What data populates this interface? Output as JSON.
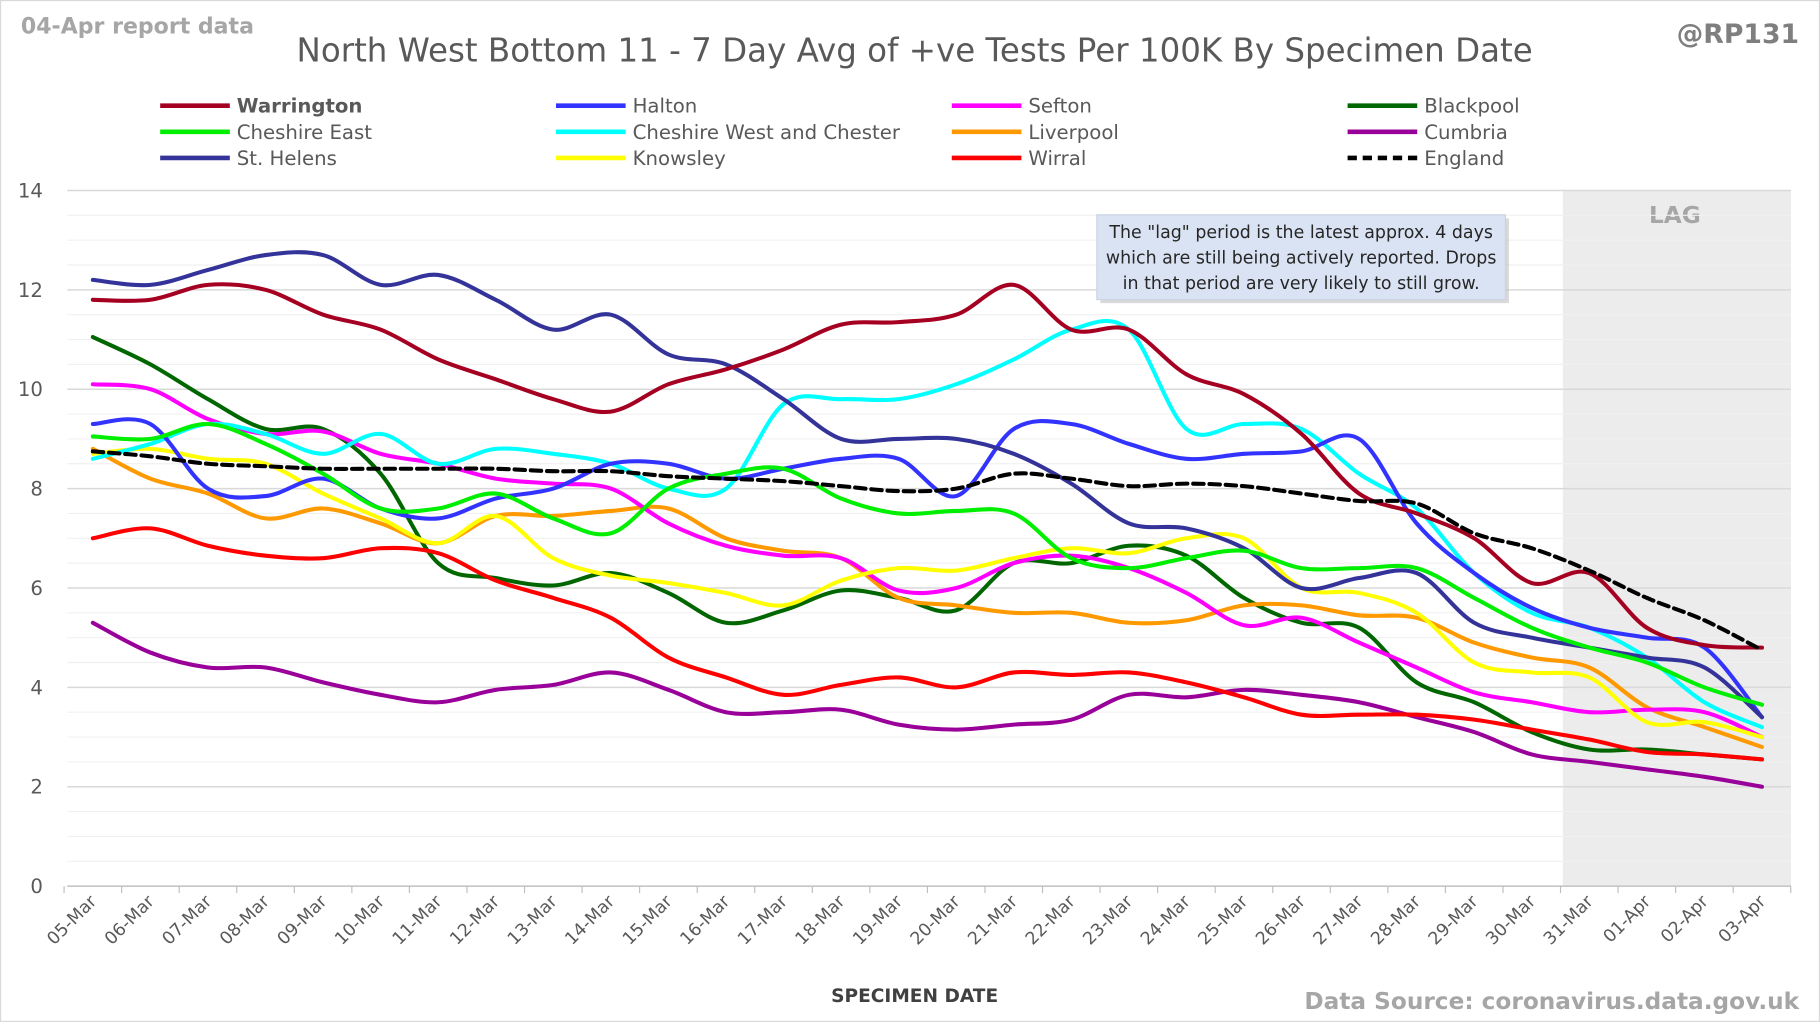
{
  "header": {
    "report_label": "04-Apr report data",
    "handle": "@RP131",
    "source": "Data Source: coronavirus.data.gov.uk"
  },
  "annotation": {
    "lag_label": "LAG",
    "lines": [
      "The \"lag\" period is the latest approx. 4 days",
      "which are still being actively reported.  Drops",
      "in that period are very likely to still grow."
    ]
  },
  "chart_data": {
    "type": "line",
    "title": "North West Bottom 11 - 7 Day Avg of +ve Tests Per 100K By Specimen Date",
    "xlabel": "SPECIMEN DATE",
    "ylabel": "",
    "ylim": [
      0,
      14
    ],
    "yticks": [
      0,
      2,
      4,
      6,
      8,
      10,
      12,
      14
    ],
    "grid": true,
    "legend_position": "top",
    "lag_start": "31-Mar",
    "x": [
      "05-Mar",
      "06-Mar",
      "07-Mar",
      "08-Mar",
      "09-Mar",
      "10-Mar",
      "11-Mar",
      "12-Mar",
      "13-Mar",
      "14-Mar",
      "15-Mar",
      "16-Mar",
      "17-Mar",
      "18-Mar",
      "19-Mar",
      "20-Mar",
      "21-Mar",
      "22-Mar",
      "23-Mar",
      "24-Mar",
      "25-Mar",
      "26-Mar",
      "27-Mar",
      "28-Mar",
      "29-Mar",
      "30-Mar",
      "31-Mar",
      "01-Apr",
      "02-Apr",
      "03-Apr"
    ],
    "series": [
      {
        "name": "Warrington",
        "color": "#a50021",
        "bold": true,
        "values": [
          11.8,
          11.8,
          12.1,
          12.0,
          11.5,
          11.2,
          10.6,
          10.2,
          9.8,
          9.55,
          10.1,
          10.4,
          10.8,
          11.3,
          11.35,
          11.5,
          12.1,
          11.2,
          11.2,
          10.3,
          9.9,
          9.1,
          7.9,
          7.5,
          7.0,
          6.1,
          6.3,
          5.2,
          4.85,
          4.8
        ]
      },
      {
        "name": "Cheshire East",
        "color": "#00ee00",
        "values": [
          9.05,
          9.0,
          9.3,
          8.9,
          8.3,
          7.6,
          7.6,
          7.9,
          7.4,
          7.1,
          8.0,
          8.3,
          8.4,
          7.8,
          7.5,
          7.55,
          7.5,
          6.6,
          6.4,
          6.6,
          6.75,
          6.4,
          6.4,
          6.4,
          5.8,
          5.2,
          4.8,
          4.5,
          4.0,
          3.65
        ]
      },
      {
        "name": "St. Helens",
        "color": "#333399",
        "values": [
          12.2,
          12.1,
          12.4,
          12.7,
          12.7,
          12.1,
          12.3,
          11.8,
          11.2,
          11.5,
          10.7,
          10.5,
          9.8,
          9.0,
          9.0,
          9.0,
          8.7,
          8.1,
          7.3,
          7.2,
          6.8,
          6.0,
          6.2,
          6.3,
          5.3,
          5.0,
          4.8,
          4.6,
          4.4,
          3.4
        ]
      },
      {
        "name": "Halton",
        "color": "#3333ff",
        "values": [
          9.3,
          9.3,
          8.0,
          7.85,
          8.2,
          7.6,
          7.4,
          7.8,
          8.0,
          8.5,
          8.5,
          8.2,
          8.4,
          8.6,
          8.6,
          7.85,
          9.2,
          9.3,
          8.9,
          8.6,
          8.7,
          8.75,
          9.0,
          7.3,
          6.3,
          5.6,
          5.2,
          5.0,
          4.8,
          3.4
        ]
      },
      {
        "name": "Cheshire West and Chester",
        "color": "#00ffff",
        "values": [
          8.6,
          8.9,
          9.3,
          9.1,
          8.7,
          9.1,
          8.5,
          8.8,
          8.7,
          8.5,
          8.0,
          8.0,
          9.7,
          9.8,
          9.8,
          10.1,
          10.6,
          11.2,
          11.2,
          9.2,
          9.3,
          9.2,
          8.3,
          7.6,
          6.3,
          5.5,
          5.2,
          4.6,
          3.7,
          3.2
        ]
      },
      {
        "name": "Knowsley",
        "color": "#ffff00",
        "values": [
          8.7,
          8.8,
          8.6,
          8.5,
          7.9,
          7.4,
          6.9,
          7.45,
          6.6,
          6.25,
          6.1,
          5.9,
          5.65,
          6.15,
          6.4,
          6.35,
          6.6,
          6.8,
          6.7,
          7.0,
          7.0,
          6.0,
          5.9,
          5.5,
          4.5,
          4.3,
          4.2,
          3.3,
          3.3,
          3.0
        ]
      },
      {
        "name": "Sefton",
        "color": "#ff00ff",
        "values": [
          10.1,
          10.0,
          9.4,
          9.1,
          9.15,
          8.7,
          8.5,
          8.2,
          8.1,
          8.0,
          7.3,
          6.85,
          6.65,
          6.6,
          5.95,
          6.0,
          6.5,
          6.65,
          6.4,
          5.9,
          5.25,
          5.4,
          4.9,
          4.4,
          3.9,
          3.7,
          3.5,
          3.55,
          3.5,
          3.0
        ]
      },
      {
        "name": "Liverpool",
        "color": "#ff9900",
        "values": [
          8.8,
          8.2,
          7.9,
          7.4,
          7.6,
          7.3,
          6.9,
          7.45,
          7.45,
          7.55,
          7.6,
          7.0,
          6.75,
          6.6,
          5.8,
          5.65,
          5.5,
          5.5,
          5.3,
          5.35,
          5.65,
          5.65,
          5.45,
          5.4,
          4.9,
          4.6,
          4.4,
          3.6,
          3.2,
          2.8
        ]
      },
      {
        "name": "Wirral",
        "color": "#ff0000",
        "values": [
          7.0,
          7.2,
          6.85,
          6.65,
          6.6,
          6.8,
          6.7,
          6.15,
          5.8,
          5.4,
          4.6,
          4.2,
          3.85,
          4.05,
          4.2,
          4.0,
          4.3,
          4.25,
          4.3,
          4.1,
          3.8,
          3.45,
          3.45,
          3.45,
          3.35,
          3.15,
          2.95,
          2.7,
          2.65,
          2.55
        ]
      },
      {
        "name": "Blackpool",
        "color": "#006600",
        "values": [
          11.05,
          10.5,
          9.8,
          9.2,
          9.2,
          8.3,
          6.5,
          6.2,
          6.05,
          6.3,
          5.9,
          5.3,
          5.55,
          5.95,
          5.8,
          5.55,
          6.5,
          6.5,
          6.85,
          6.65,
          5.8,
          5.3,
          5.2,
          4.1,
          3.7,
          3.1,
          2.75,
          2.75,
          2.65,
          2.55
        ]
      },
      {
        "name": "Cumbria",
        "color": "#990099",
        "values": [
          5.3,
          4.7,
          4.4,
          4.4,
          4.1,
          3.85,
          3.7,
          3.95,
          4.05,
          4.3,
          3.95,
          3.5,
          3.5,
          3.55,
          3.25,
          3.15,
          3.25,
          3.35,
          3.85,
          3.8,
          3.95,
          3.85,
          3.7,
          3.4,
          3.1,
          2.65,
          2.5,
          2.35,
          2.2,
          2.0
        ]
      },
      {
        "name": "England",
        "color": "#000000",
        "dashed": true,
        "values": [
          8.75,
          8.65,
          8.5,
          8.45,
          8.4,
          8.4,
          8.4,
          8.4,
          8.35,
          8.35,
          8.25,
          8.2,
          8.15,
          8.05,
          7.95,
          8.0,
          8.3,
          8.2,
          8.05,
          8.1,
          8.05,
          7.9,
          7.75,
          7.7,
          7.1,
          6.8,
          6.35,
          5.8,
          5.35,
          4.75
        ]
      }
    ]
  }
}
